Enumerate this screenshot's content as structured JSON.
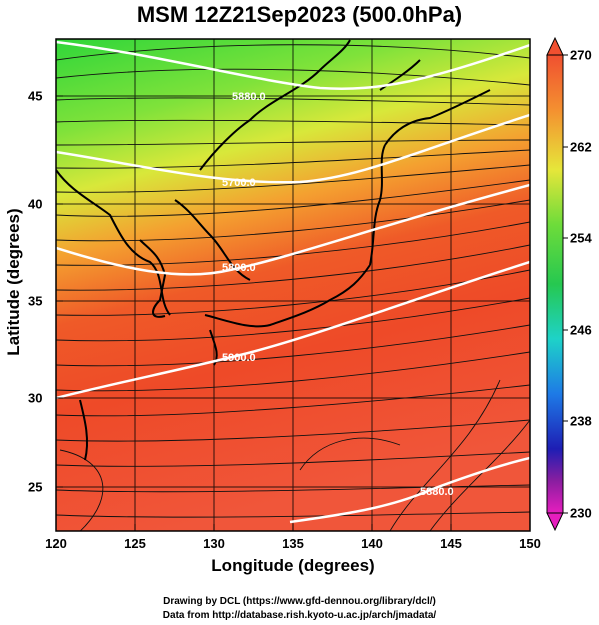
{
  "title": "MSM 12Z21Sep2023 (500.0hPa)",
  "xaxis": {
    "label": "Longitude (degrees)",
    "ticks": [
      "120",
      "125",
      "130",
      "135",
      "140",
      "145",
      "150"
    ]
  },
  "yaxis": {
    "label": "Latitude  (degrees)",
    "ticks": [
      "25",
      "30",
      "35",
      "40",
      "45"
    ]
  },
  "colorbar": {
    "ticks": [
      "270",
      "262",
      "254",
      "246",
      "238",
      "230"
    ]
  },
  "contours": [
    {
      "label": "5880.0"
    },
    {
      "label": "5700.0"
    },
    {
      "label": "5800.0"
    },
    {
      "label": "5900.0"
    },
    {
      "label": "5880.0"
    }
  ],
  "footer": {
    "line1": "Drawing by DCL (https://www.gfd-dennou.org/library/dcl/)",
    "line2": "Data from http://database.rish.kyoto-u.ac.jp/arch/jmadata/"
  }
}
